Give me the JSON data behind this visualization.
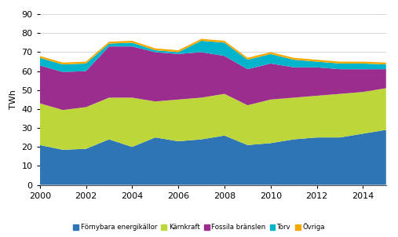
{
  "years": [
    2000,
    2001,
    2002,
    2003,
    2004,
    2005,
    2006,
    2007,
    2008,
    2009,
    2010,
    2011,
    2012,
    2013,
    2014,
    2015
  ],
  "fornybara": [
    21,
    18.5,
    19,
    24,
    20,
    25,
    23,
    24,
    26,
    21,
    22,
    24,
    25,
    25,
    27,
    29
  ],
  "karnkraft": [
    22,
    21,
    22,
    22,
    26,
    19,
    22,
    22,
    22,
    21,
    23,
    22,
    22,
    23,
    22,
    22
  ],
  "fossila": [
    20,
    20,
    19,
    27,
    27,
    26,
    24,
    24,
    20,
    19,
    19,
    16,
    15,
    13,
    12,
    10
  ],
  "torv": [
    4,
    4,
    4,
    1.5,
    2,
    1,
    1,
    6,
    7,
    5,
    5,
    4,
    3,
    3,
    3,
    2.5
  ],
  "ovriga": [
    1,
    1,
    1,
    1,
    1,
    1,
    1,
    1,
    1,
    1,
    1,
    1,
    1,
    1,
    1,
    1
  ],
  "colors": {
    "fornybara": "#2e75b6",
    "karnkraft": "#bdd73b",
    "fossila": "#9b2d8e",
    "torv": "#00b4cc",
    "ovriga": "#f5a800"
  },
  "labels": [
    "Förnybara energikällor",
    "Kärnkraft",
    "Fossila bränslen",
    "Torv",
    "Övriga"
  ],
  "ylabel": "TWh",
  "ylim": [
    0,
    90
  ],
  "yticks": [
    0,
    10,
    20,
    30,
    40,
    50,
    60,
    70,
    80,
    90
  ],
  "xticks": [
    2000,
    2002,
    2004,
    2006,
    2008,
    2010,
    2012,
    2014
  ],
  "figsize": [
    5.07,
    3.02
  ],
  "dpi": 100
}
